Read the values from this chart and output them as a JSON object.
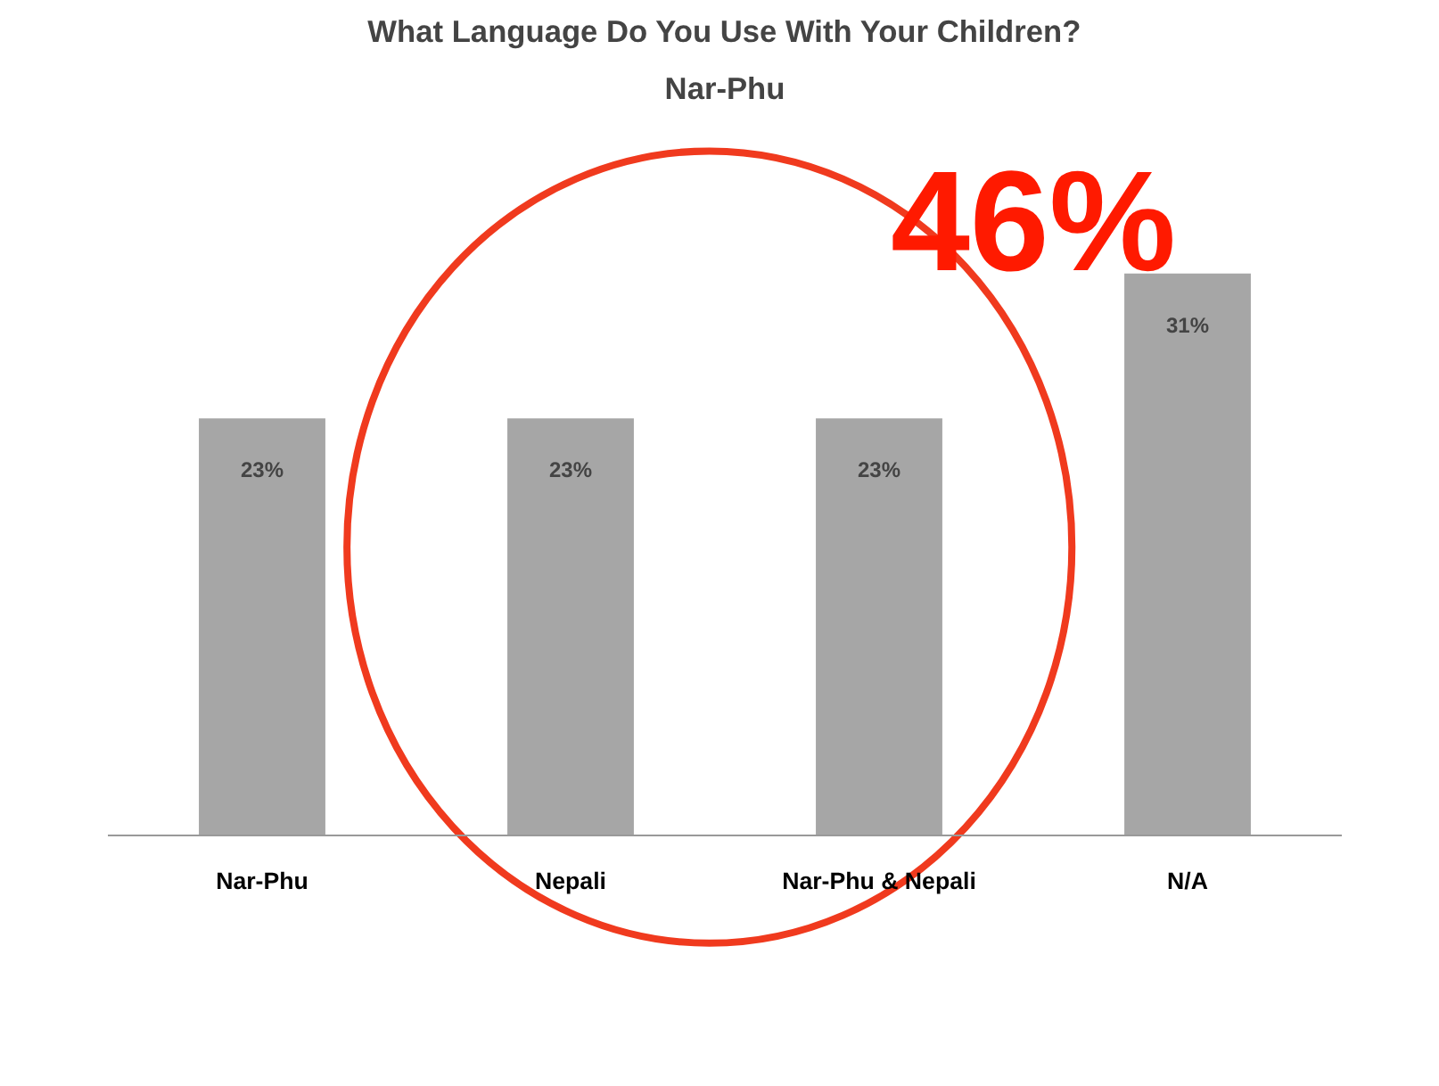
{
  "chart_data": {
    "type": "bar",
    "title": "What Language Do You Use With Your Children?",
    "subtitle": "Nar-Phu",
    "categories": [
      "Nar-Phu",
      "Nepali",
      "Nar-Phu & Nepali",
      "N/A"
    ],
    "values": [
      23,
      23,
      23,
      31
    ],
    "color": "#a6a6a6",
    "data_labels": true,
    "value_labels": [
      "23%",
      "23%",
      "23%",
      "31%"
    ],
    "grid": false,
    "annotations": [
      "46%"
    ]
  }
}
